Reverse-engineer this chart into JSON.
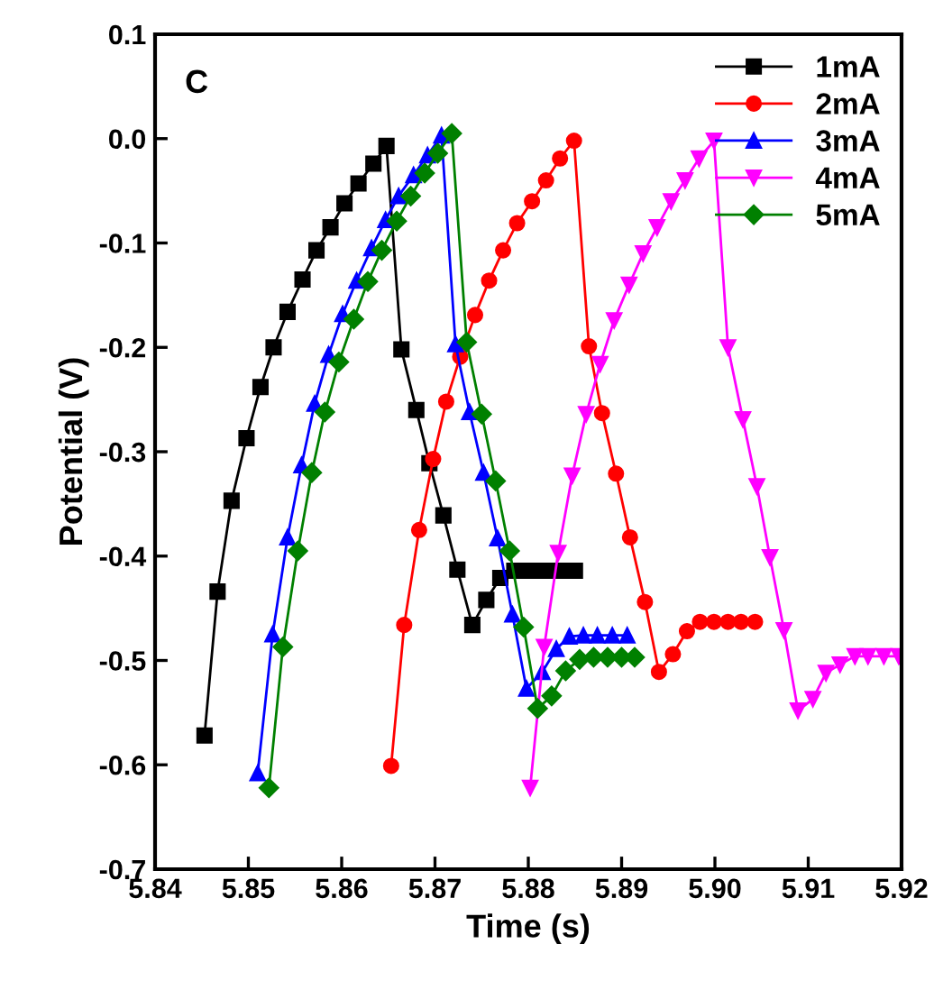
{
  "chart_data": {
    "type": "line",
    "xlabel": "Time (s)",
    "ylabel": "Potential (V)",
    "annotations": [
      "C"
    ],
    "xlim": [
      5.84,
      5.92
    ],
    "xticks": [
      {
        "value": 5.84,
        "label": "5.84"
      },
      {
        "value": 5.85,
        "label": "5.85"
      },
      {
        "value": 5.86,
        "label": "5.86"
      },
      {
        "value": 5.87,
        "label": "5.87"
      },
      {
        "value": 5.88,
        "label": "5.88"
      },
      {
        "value": 5.89,
        "label": "5.89"
      },
      {
        "value": 5.9,
        "label": "5.90"
      },
      {
        "value": 5.91,
        "label": "5.91"
      },
      {
        "value": 5.92,
        "label": "5.92"
      }
    ],
    "ylim": [
      -0.7,
      0.1
    ],
    "yticks": [
      {
        "value": -0.7,
        "label": "-0.7"
      },
      {
        "value": -0.6,
        "label": "-0.6"
      },
      {
        "value": -0.5,
        "label": "-0.5"
      },
      {
        "value": -0.4,
        "label": "-0.4"
      },
      {
        "value": -0.3,
        "label": "-0.3"
      },
      {
        "value": -0.2,
        "label": "-0.2"
      },
      {
        "value": -0.1,
        "label": "-0.1"
      },
      {
        "value": 0.0,
        "label": "0.0"
      },
      {
        "value": 0.1,
        "label": "0.1"
      }
    ],
    "grid": false,
    "legend": "top right",
    "line_style": "solid",
    "series": [
      {
        "name": "1mA",
        "color": "#000000",
        "marker": "square",
        "x": [
          5.8453,
          5.8467,
          5.8482,
          5.8498,
          5.8513,
          5.8527,
          5.8542,
          5.8558,
          5.8573,
          5.8588,
          5.8603,
          5.8618,
          5.8634,
          5.8648,
          5.8664,
          5.868,
          5.8694,
          5.8709,
          5.8724,
          5.874,
          5.8755,
          5.877,
          5.8785,
          5.8798,
          5.8811,
          5.8824,
          5.8837,
          5.885
        ],
        "values": [
          -0.572,
          -0.434,
          -0.347,
          -0.287,
          -0.238,
          -0.2,
          -0.166,
          -0.135,
          -0.107,
          -0.085,
          -0.062,
          -0.043,
          -0.024,
          -0.007,
          -0.202,
          -0.26,
          -0.311,
          -0.361,
          -0.413,
          -0.466,
          -0.442,
          -0.421,
          -0.414,
          -0.414,
          -0.414,
          -0.414,
          -0.414,
          -0.414
        ]
      },
      {
        "name": "2mA",
        "color": "#ff0000",
        "marker": "circle",
        "x": [
          5.8653,
          5.8667,
          5.8683,
          5.8698,
          5.8712,
          5.8727,
          5.8743,
          5.8758,
          5.8773,
          5.8788,
          5.8804,
          5.8819,
          5.8834,
          5.8849,
          5.8865,
          5.8879,
          5.8894,
          5.8909,
          5.8925,
          5.894,
          5.8955,
          5.897,
          5.8984,
          5.8999,
          5.9014,
          5.9028,
          5.9043
        ],
        "values": [
          -0.601,
          -0.466,
          -0.375,
          -0.307,
          -0.252,
          -0.209,
          -0.169,
          -0.136,
          -0.107,
          -0.081,
          -0.06,
          -0.04,
          -0.019,
          -0.002,
          -0.199,
          -0.263,
          -0.321,
          -0.382,
          -0.444,
          -0.511,
          -0.494,
          -0.472,
          -0.463,
          -0.463,
          -0.463,
          -0.463,
          -0.463
        ]
      },
      {
        "name": "3mA",
        "color": "#0000ff",
        "marker": "triangle",
        "x": [
          5.851,
          5.8526,
          5.8542,
          5.8557,
          5.8571,
          5.8586,
          5.8601,
          5.8616,
          5.8632,
          5.8647,
          5.8661,
          5.8677,
          5.8692,
          5.8707,
          5.8722,
          5.8737,
          5.8752,
          5.8767,
          5.8783,
          5.8798,
          5.8815,
          5.883,
          5.8844,
          5.8859,
          5.8874,
          5.889,
          5.8906
        ],
        "values": [
          -0.608,
          -0.475,
          -0.382,
          -0.313,
          -0.254,
          -0.207,
          -0.168,
          -0.136,
          -0.105,
          -0.078,
          -0.055,
          -0.035,
          -0.016,
          0.003,
          -0.197,
          -0.262,
          -0.32,
          -0.383,
          -0.456,
          -0.527,
          -0.511,
          -0.489,
          -0.477,
          -0.476,
          -0.476,
          -0.476,
          -0.476
        ]
      },
      {
        "name": "4mA",
        "color": "#ff00ff",
        "marker": "triangle_down",
        "x": [
          5.8802,
          5.8817,
          5.8832,
          5.8847,
          5.8862,
          5.8877,
          5.8892,
          5.8908,
          5.8923,
          5.8938,
          5.8953,
          5.8968,
          5.8983,
          5.8999,
          5.9014,
          5.903,
          5.9045,
          5.9059,
          5.9074,
          5.9089,
          5.9105,
          5.9119,
          5.9134,
          5.915,
          5.9164,
          5.9181,
          5.9197
        ],
        "values": [
          -0.622,
          -0.487,
          -0.397,
          -0.323,
          -0.264,
          -0.216,
          -0.174,
          -0.14,
          -0.11,
          -0.085,
          -0.06,
          -0.04,
          -0.019,
          -0.002,
          -0.2,
          -0.269,
          -0.333,
          -0.401,
          -0.471,
          -0.548,
          -0.537,
          -0.512,
          -0.504,
          -0.496,
          -0.496,
          -0.496,
          -0.496
        ]
      },
      {
        "name": "5mA",
        "color": "#008000",
        "marker": "diamond",
        "x": [
          5.8522,
          5.8537,
          5.8553,
          5.8568,
          5.8582,
          5.8597,
          5.8613,
          5.8628,
          5.8643,
          5.8659,
          5.8674,
          5.8689,
          5.8703,
          5.8718,
          5.8734,
          5.875,
          5.8765,
          5.878,
          5.8795,
          5.881,
          5.8825,
          5.884,
          5.8855,
          5.887,
          5.8885,
          5.89,
          5.8914
        ],
        "values": [
          -0.622,
          -0.487,
          -0.395,
          -0.32,
          -0.262,
          -0.214,
          -0.173,
          -0.137,
          -0.107,
          -0.079,
          -0.055,
          -0.033,
          -0.014,
          0.005,
          -0.195,
          -0.264,
          -0.328,
          -0.395,
          -0.468,
          -0.546,
          -0.534,
          -0.51,
          -0.499,
          -0.497,
          -0.497,
          -0.497,
          -0.497
        ]
      }
    ]
  }
}
